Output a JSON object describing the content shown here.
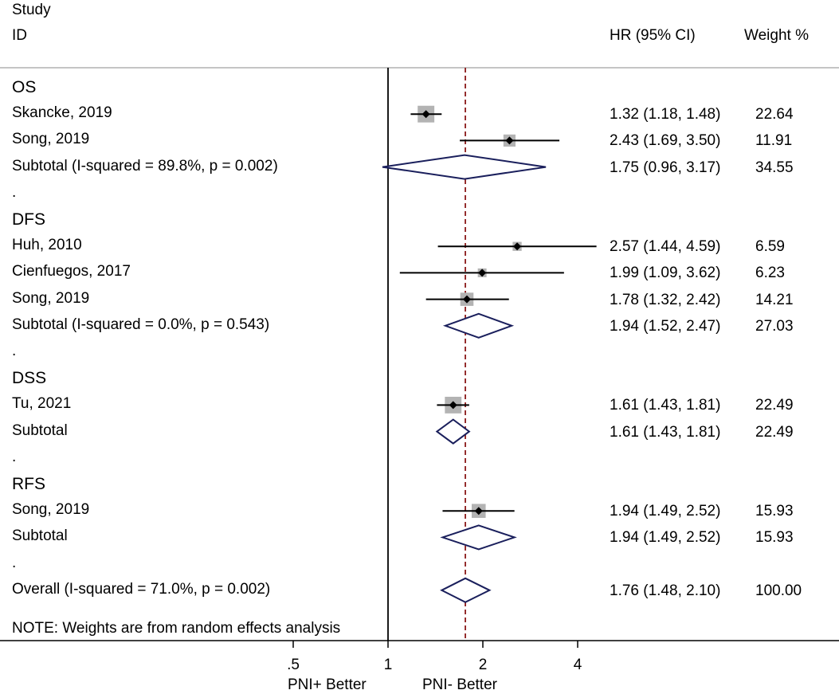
{
  "header": {
    "study_label": "Study",
    "id_label": "ID",
    "hr_label": "HR (95% CI)",
    "weight_label": "Weight %"
  },
  "note": "NOTE: Weights are from random effects analysis",
  "colors": {
    "ci_line": "#000000",
    "point_box": "#b3b3b3",
    "diamond_stroke": "#1a1f5c",
    "ref_line": "#8b1a1a"
  },
  "chart_data": {
    "type": "forest",
    "scale": "log",
    "null_value": 1,
    "overall_estimate": 1.76,
    "x_ticks": [
      ".5",
      "1",
      "2",
      "4"
    ],
    "x_tick_values": [
      0.5,
      1,
      2,
      4
    ],
    "x_range": [
      0.48,
      6.2
    ],
    "favours_left": "PNI+ Better",
    "favours_right": "PNI- Better",
    "rows": [
      {
        "kind": "group",
        "label": "OS"
      },
      {
        "kind": "study",
        "label": "Skancke, 2019",
        "hr": 1.32,
        "lo": 1.18,
        "hi": 1.48,
        "hr_text": "1.32 (1.18, 1.48)",
        "weight": "22.64"
      },
      {
        "kind": "study",
        "label": "Song, 2019",
        "hr": 2.43,
        "lo": 1.69,
        "hi": 3.5,
        "hr_text": "2.43 (1.69, 3.50)",
        "weight": "11.91"
      },
      {
        "kind": "subtotal",
        "label": "Subtotal  (I-squared = 89.8%, p = 0.002)",
        "hr": 1.75,
        "lo": 0.96,
        "hi": 3.17,
        "hr_text": "1.75 (0.96, 3.17)",
        "weight": "34.55"
      },
      {
        "kind": "dot",
        "label": "."
      },
      {
        "kind": "group",
        "label": "DFS"
      },
      {
        "kind": "study",
        "label": "Huh, 2010",
        "hr": 2.57,
        "lo": 1.44,
        "hi": 4.59,
        "hr_text": "2.57 (1.44, 4.59)",
        "weight": "6.59"
      },
      {
        "kind": "study",
        "label": "Cienfuegos, 2017",
        "hr": 1.99,
        "lo": 1.09,
        "hi": 3.62,
        "hr_text": "1.99 (1.09, 3.62)",
        "weight": "6.23"
      },
      {
        "kind": "study",
        "label": "Song, 2019",
        "hr": 1.78,
        "lo": 1.32,
        "hi": 2.42,
        "hr_text": "1.78 (1.32, 2.42)",
        "weight": "14.21"
      },
      {
        "kind": "subtotal",
        "label": "Subtotal  (I-squared = 0.0%, p = 0.543)",
        "hr": 1.94,
        "lo": 1.52,
        "hi": 2.47,
        "hr_text": "1.94 (1.52, 2.47)",
        "weight": "27.03"
      },
      {
        "kind": "dot",
        "label": "."
      },
      {
        "kind": "group",
        "label": "DSS"
      },
      {
        "kind": "study",
        "label": "Tu, 2021",
        "hr": 1.61,
        "lo": 1.43,
        "hi": 1.81,
        "hr_text": "1.61 (1.43, 1.81)",
        "weight": "22.49"
      },
      {
        "kind": "subtotal",
        "label": "Subtotal",
        "hr": 1.61,
        "lo": 1.43,
        "hi": 1.81,
        "hr_text": "1.61 (1.43, 1.81)",
        "weight": "22.49"
      },
      {
        "kind": "dot",
        "label": "."
      },
      {
        "kind": "group",
        "label": "RFS"
      },
      {
        "kind": "study",
        "label": "Song, 2019",
        "hr": 1.94,
        "lo": 1.49,
        "hi": 2.52,
        "hr_text": "1.94 (1.49, 2.52)",
        "weight": "15.93"
      },
      {
        "kind": "subtotal",
        "label": "Subtotal",
        "hr": 1.94,
        "lo": 1.49,
        "hi": 2.52,
        "hr_text": "1.94 (1.49, 2.52)",
        "weight": "15.93"
      },
      {
        "kind": "dot",
        "label": "."
      },
      {
        "kind": "overall",
        "label": "Overall  (I-squared = 71.0%, p = 0.002)",
        "hr": 1.76,
        "lo": 1.48,
        "hi": 2.1,
        "hr_text": "1.76 (1.48, 2.10)",
        "weight": "100.00"
      }
    ]
  }
}
